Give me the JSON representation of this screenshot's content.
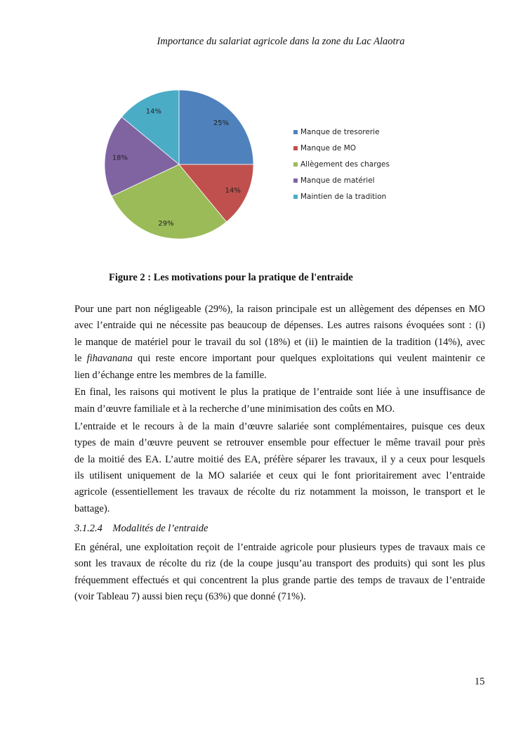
{
  "header": "Importance du salariat agricole dans la zone du Lac Alaotra",
  "chart_data": {
    "type": "pie",
    "start": "top",
    "direction": "clockwise",
    "categories": [
      "Manque de tresorerie",
      "Manque de MO",
      "Allègement des charges",
      "Manque de matériel",
      "Maintien de la tradition"
    ],
    "values": [
      25,
      14,
      29,
      18,
      14
    ],
    "data_labels": [
      "25%",
      "14%",
      "29%",
      "18%",
      "14%"
    ],
    "colors": [
      "#4f81bd",
      "#c0504d",
      "#9bbb59",
      "#8064a2",
      "#4bacc6"
    ],
    "legend_position": "right"
  },
  "caption": "Figure 2 : Les motivations pour la pratique de l'entraide",
  "paragraphs": [
    [
      "Pour une part non négligeable (29%), la raison principale est un allègement des dépenses en MO",
      "avec l’entraide qui ne nécessite pas beaucoup de dépenses. Les autres raisons évoquées sont : (i)",
      "le manque de matériel pour le travail du sol (18%) et (ii) le maintien de la tradition (14%), avec",
      {
        "before": "le ",
        "italic": "fihavanana",
        "after": " qui reste encore important pour quelques exploitations qui veulent maintenir ce"
      },
      "lien d’échange entre les membres de la famille."
    ],
    [
      "En final, les raisons qui motivent le plus la pratique de l’entraide sont liée à une insuffisance de",
      "main d’œuvre familiale et à la recherche d’une minimisation des coûts en MO."
    ],
    [
      "L’entraide et le recours à de la main d’œuvre salariée sont complémentaires, puisque ces deux",
      "types de main d’œuvre peuvent se retrouver ensemble pour effectuer le même travail pour près",
      "de la moitié des EA. L’autre moitié des EA, préfère séparer les travaux, il y a ceux pour lesquels",
      "ils utilisent uniquement de la MO salariée et ceux qui le font prioritairement avec l’entraide",
      "agricole (essentiellement les travaux de récolte du riz notamment la moisson, le transport et le",
      "battage)."
    ]
  ],
  "section_heading": "3.1.2.4 Modalités de l’entraide",
  "paragraphs2": [
    [
      "En général, une exploitation reçoit de l’entraide agricole pour plusieurs types de travaux mais ce",
      "sont les travaux de récolte du riz (de la coupe jusqu’au transport des produits) qui sont les plus",
      "fréquemment effectués et qui concentrent la plus grande partie des temps de travaux de l’entraide",
      "(voir Tableau 7) aussi bien reçu (63%) que donné (71%)."
    ]
  ],
  "page_number": "15"
}
